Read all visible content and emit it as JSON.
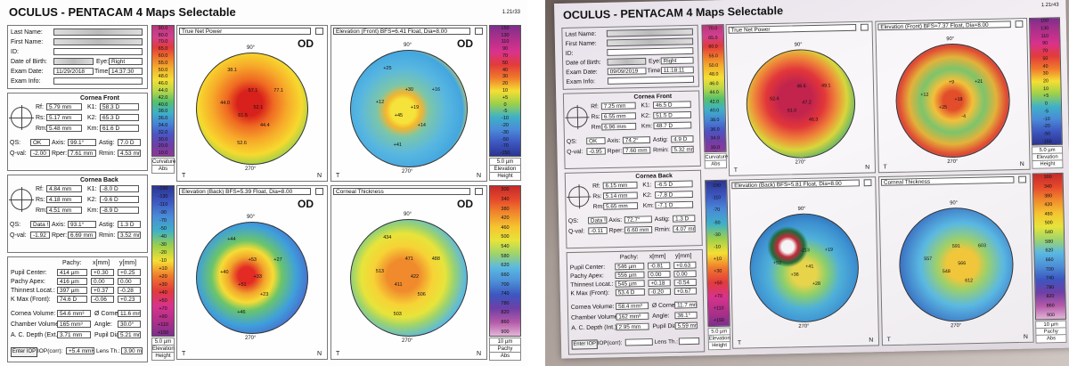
{
  "left": {
    "title": "OCULUS - PENTACAM  4 Maps Selectable",
    "version": "1.21r33",
    "patient": [
      "Last Name:",
      "First Name:",
      "ID:",
      "Date of Birth:",
      "Exam Date:",
      "Exam Info:"
    ],
    "exam": {
      "eye_label": "Eye:",
      "eye": "Right",
      "date": "11/29/2018",
      "time_label": "Time:",
      "time": "14:37:30"
    },
    "front": {
      "heading": "Cornea Front",
      "rows": [
        [
          [
            "Rf:",
            "5.79 mm"
          ],
          [
            "K1:",
            "58.3 D"
          ]
        ],
        [
          [
            "Rs:",
            "5.17 mm"
          ],
          [
            "K2:",
            "65.3 D"
          ]
        ],
        [
          [
            "Rm:",
            "5.48 mm"
          ],
          [
            "Km:",
            "61.6 D"
          ]
        ],
        [
          [
            "QS:",
            "OK"
          ],
          [
            "Axis:",
            "99.1°"
          ],
          [
            "Astig:",
            "7.0 D"
          ]
        ],
        [
          [
            "Q-val:",
            "-2.00"
          ],
          [
            "Rper:",
            "7.61 mm"
          ],
          [
            "Rmin:",
            "4.53 mm"
          ]
        ]
      ]
    },
    "back": {
      "heading": "Cornea Back",
      "rows": [
        [
          [
            "Rf:",
            "4.84 mm"
          ],
          [
            "K1:",
            "-8.0 D"
          ]
        ],
        [
          [
            "Rs:",
            "4.18 mm"
          ],
          [
            "K2:",
            "-9.6 D"
          ]
        ],
        [
          [
            "Rm:",
            "4.51 mm"
          ],
          [
            "Km:",
            "-8.9 D"
          ]
        ],
        [
          [
            "QS:",
            "Data !!"
          ],
          [
            "Axis:",
            "93.1°"
          ],
          [
            "Astig:",
            "1.3 D"
          ]
        ],
        [
          [
            "Q-val:",
            "-1.92"
          ],
          [
            "Rper:",
            "6.69 mm"
          ],
          [
            "Rmin:",
            "3.52 mm"
          ]
        ]
      ]
    },
    "pachy": {
      "header": [
        "Pachy:",
        "x[mm]",
        "y[mm]"
      ],
      "rows": [
        {
          "label": "Pupil Center:",
          "value": "414 µm",
          "x": "+0.30",
          "y": "+0.25"
        },
        {
          "label": "Pachy Apex:",
          "value": "416 µm",
          "x": "0.00",
          "y": "0.00"
        },
        {
          "label": "Thinnest Locat.:",
          "value": "397 µm",
          "x": "+0.37",
          "y": "-0.28"
        },
        {
          "label": "K Max (Front):",
          "value": "74.6 D",
          "x": "-0.06",
          "y": "+0.23"
        }
      ],
      "extra": [
        [
          [
            "Cornea Volume:",
            "54.6 mm³"
          ],
          [
            "Ø Cornea:",
            "11.6 mm"
          ]
        ],
        [
          [
            "Chamber Volume:",
            "165 mm³"
          ],
          [
            "Angle:",
            "30.0°"
          ]
        ],
        [
          [
            "A. C. Depth (Ext.):",
            "3.71 mm"
          ],
          [
            "Pupil Dia:",
            "5.21 mm"
          ]
        ]
      ],
      "iop": {
        "button": "Enter IOP",
        "pairs": [
          [
            "IOP(corr):",
            "+5.4 mmHg"
          ],
          [
            "Lens Th.:",
            "3.90 mm"
          ]
        ]
      }
    },
    "axes": [
      "90°",
      "270°",
      "T",
      "N"
    ],
    "maps": [
      {
        "title": "True Net Power",
        "eye": "OD",
        "labels": [
          "52.1",
          "61.5",
          "57.1",
          "44.4",
          "44.0",
          "77.1",
          "52.6",
          "38.1"
        ],
        "scale": [
          "90.0",
          "80.0",
          "70.0",
          "65.0",
          "60.0",
          "55.0",
          "50.0",
          "48.0",
          "46.0",
          "44.0",
          "42.0",
          "40.0",
          "38.0",
          "36.0",
          "34.0",
          "32.0",
          "30.0",
          "20.0",
          "10.0"
        ],
        "footer": [
          "Curvature",
          "Abs"
        ]
      },
      {
        "title": "Elevation (Front) BFS=6.41 Float, Dia=8.00",
        "eye": "OD",
        "labels": [
          "+19",
          "+45",
          "+30",
          "+14",
          "+12",
          "+16",
          "+41",
          "+25"
        ],
        "scale": [
          "150",
          "130",
          "110",
          "90",
          "70",
          "50",
          "40",
          "30",
          "20",
          "10",
          "+5",
          "0",
          "-5",
          "-10",
          "-20",
          "-30",
          "-50",
          "-70",
          "-150"
        ],
        "footer": [
          "5.0 µm",
          "Elevation",
          "Height"
        ]
      },
      {
        "title": "Elevation (Back) BFS=5.39 Float, Dia=8.00",
        "eye": "OD",
        "labels": [
          "+33",
          "+51",
          "+53",
          "+23",
          "+40",
          "+27",
          "+46",
          "+44"
        ],
        "scale": [
          "-150",
          "-130",
          "-110",
          "-90",
          "-70",
          "-50",
          "-40",
          "-30",
          "-20",
          "-10",
          "+10",
          "+20",
          "+30",
          "+40",
          "+50",
          "+70",
          "+90",
          "+110",
          "+150"
        ],
        "footer": [
          "5.0 µm",
          "Elevation",
          "Height"
        ]
      },
      {
        "title": "Corneal Thickness",
        "eye": "OD",
        "labels": [
          "422",
          "411",
          "471",
          "506",
          "513",
          "488",
          "503",
          "434"
        ],
        "scale": [
          "300",
          "340",
          "380",
          "420",
          "460",
          "500",
          "540",
          "580",
          "620",
          "660",
          "700",
          "740",
          "780",
          "820",
          "860",
          "900"
        ],
        "footer": [
          "10 µm",
          "Pachy",
          "Abs"
        ]
      }
    ]
  },
  "right": {
    "title": "OCULUS - PENTACAM  4 Maps Selectable",
    "version": "1.21r43",
    "patient": [
      "Last Name:",
      "First Name:",
      "ID:",
      "Date of Birth:",
      "Exam Date:",
      "Exam Info:"
    ],
    "exam": {
      "eye_label": "Eye:",
      "eye": "Right",
      "date": "09/09/2019",
      "time_label": "Time:",
      "time": "11:18:11"
    },
    "front": {
      "heading": "Cornea Front",
      "rows": [
        [
          [
            "Rf:",
            "7.25 mm"
          ],
          [
            "K1:",
            "46.5 D"
          ]
        ],
        [
          [
            "Rs:",
            "6.55 mm"
          ],
          [
            "K2:",
            "51.5 D"
          ]
        ],
        [
          [
            "Rm:",
            "6.96 mm"
          ],
          [
            "Km:",
            "48.7 D"
          ]
        ],
        [
          [
            "QS:",
            "OK"
          ],
          [
            "Axis:",
            "74.2°"
          ],
          [
            "Astig:",
            "4.9 D"
          ]
        ],
        [
          [
            "Q-val:",
            "-0.95"
          ],
          [
            "Rper:",
            "7.60 mm"
          ],
          [
            "Rmin:",
            "5.32 mm"
          ]
        ]
      ]
    },
    "back": {
      "heading": "Cornea Back",
      "rows": [
        [
          [
            "Rf:",
            "6.15 mm"
          ],
          [
            "K1:",
            "-6.5 D"
          ]
        ],
        [
          [
            "Rs:",
            "5.14 mm"
          ],
          [
            "K2:",
            "-7.8 D"
          ]
        ],
        [
          [
            "Rm:",
            "5.65 mm"
          ],
          [
            "Km:",
            "-7.1 D"
          ]
        ],
        [
          [
            "QS:",
            "Data !!"
          ],
          [
            "Axis:",
            "72.7°"
          ],
          [
            "Astig:",
            "1.3 D"
          ]
        ],
        [
          [
            "Q-val:",
            "-0.11"
          ],
          [
            "Rper:",
            "6.60 mm"
          ],
          [
            "Rmin:",
            "4.07 mm"
          ]
        ]
      ]
    },
    "pachy": {
      "header": [
        "Pachy:",
        "x[mm]",
        "y[mm]"
      ],
      "rows": [
        {
          "label": "Pupil Center:",
          "value": "546 µm",
          "x": "-0.81",
          "y": "+0.63"
        },
        {
          "label": "Pachy Apex:",
          "value": "556 µm",
          "x": "0.00",
          "y": "0.00"
        },
        {
          "label": "Thinnest Locat.:",
          "value": "545 µm",
          "x": "+0.18",
          "y": "-0.54"
        },
        {
          "label": "K Max (Front):",
          "value": "53.4 D",
          "x": "-0.20",
          "y": "+0.67"
        }
      ],
      "extra": [
        [
          [
            "Cornea Volume:",
            "58.4 mm³"
          ],
          [
            "Ø Cornea:",
            "11.7 mm"
          ]
        ],
        [
          [
            "Chamber Volume:",
            "162 mm³"
          ],
          [
            "Angle:",
            "36.1°"
          ]
        ],
        [
          [
            "A. C. Depth (Int.):",
            "2.95 mm"
          ],
          [
            "Pupil Dia:",
            "5.59 mm"
          ]
        ]
      ],
      "iop": {
        "button": "Enter IOP",
        "pairs": [
          [
            "IOP(corr):"
          ],
          [
            "Lens Th.:"
          ]
        ]
      }
    },
    "axes": [
      "90°",
      "270°",
      "T",
      "N"
    ],
    "maps": [
      {
        "title": "True Net Power",
        "labels": [
          "47.2",
          "51.0",
          "48.6",
          "46.3",
          "52.4",
          "49.1"
        ],
        "scale": [
          "70.0",
          "65.0",
          "60.0",
          "55.0",
          "50.0",
          "48.0",
          "46.0",
          "44.0",
          "42.0",
          "40.0",
          "38.0",
          "36.0",
          "34.0",
          "30.0"
        ],
        "footer": [
          "Curvature",
          "Abs"
        ]
      },
      {
        "title": "Elevation (Front) BFS=7.37 Float, Dia=8.00",
        "labels": [
          "+18",
          "+25",
          "+9",
          "-4",
          "+12",
          "+21"
        ],
        "scale": [
          "150",
          "130",
          "110",
          "90",
          "70",
          "50",
          "40",
          "30",
          "20",
          "10",
          "+5",
          "0",
          "-5",
          "-10",
          "-20",
          "-50",
          "-150"
        ],
        "footer": [
          "5.0 µm",
          "Elevation",
          "Height"
        ]
      },
      {
        "title": "Elevation (Back) BFS=5.81 Float, Dia=8.00",
        "labels": [
          "+41",
          "+36",
          "-213",
          "+28",
          "+52",
          "+19"
        ],
        "scale": [
          "-150",
          "-110",
          "-70",
          "-50",
          "-30",
          "-10",
          "+10",
          "+30",
          "+50",
          "+70",
          "+110",
          "+150"
        ],
        "footer": [
          "5.0 µm",
          "Elevation",
          "Height"
        ]
      },
      {
        "title": "Corneal Thickness",
        "labels": [
          "566",
          "548",
          "591",
          "612",
          "557",
          "603"
        ],
        "scale": [
          "300",
          "340",
          "380",
          "420",
          "460",
          "500",
          "540",
          "580",
          "620",
          "660",
          "700",
          "740",
          "780",
          "820",
          "860",
          "900"
        ],
        "footer": [
          "10 µm",
          "Pachy",
          "Abs"
        ]
      }
    ]
  }
}
